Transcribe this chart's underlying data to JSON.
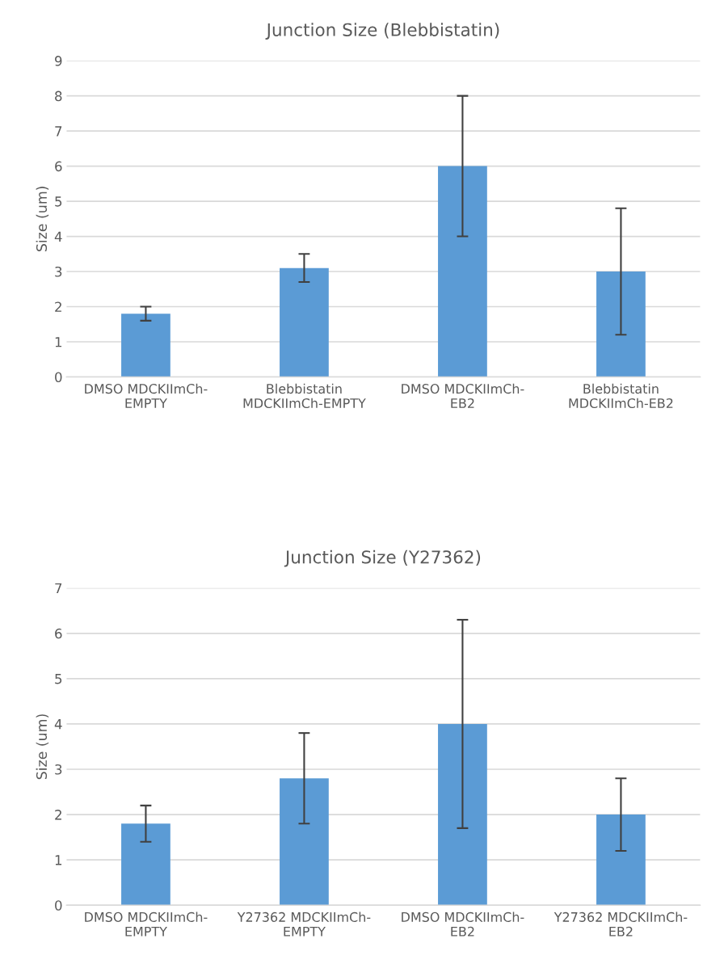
{
  "chart_data": [
    {
      "type": "bar",
      "title": "Junction Size (Blebbistatin)",
      "ylabel": "Size (um)",
      "categories": [
        "DMSO MDCKIImCh-\nEMPTY",
        "Blebbistatin\nMDCKIImCh-EMPTY",
        "DMSO MDCKIImCh-\nEB2",
        "Blebbistatin\nMDCKIImCh-EB2"
      ],
      "values": [
        1.8,
        3.1,
        6.0,
        3.0
      ],
      "errors": [
        0.2,
        0.4,
        2.0,
        1.8
      ],
      "color": "#5b9bd5",
      "ylim": [
        0,
        9
      ],
      "yticks": [
        0,
        1,
        2,
        3,
        4,
        5,
        6,
        7,
        8,
        9
      ],
      "grid": "y",
      "legend": false
    },
    {
      "type": "bar",
      "title": "Junction Size (Y27362)",
      "ylabel": "Size (um)",
      "categories": [
        "DMSO MDCKIImCh-\nEMPTY",
        "Y27362 MDCKIImCh-\nEMPTY",
        "DMSO MDCKIImCh-\nEB2",
        "Y27362 MDCKIImCh-\nEB2"
      ],
      "values": [
        1.8,
        2.8,
        4.0,
        2.0
      ],
      "errors": [
        0.4,
        1.0,
        2.3,
        0.8
      ],
      "color": "#5b9bd5",
      "ylim": [
        0,
        7
      ],
      "yticks": [
        0,
        1,
        2,
        3,
        4,
        5,
        6,
        7
      ],
      "grid": "y",
      "legend": false
    }
  ]
}
